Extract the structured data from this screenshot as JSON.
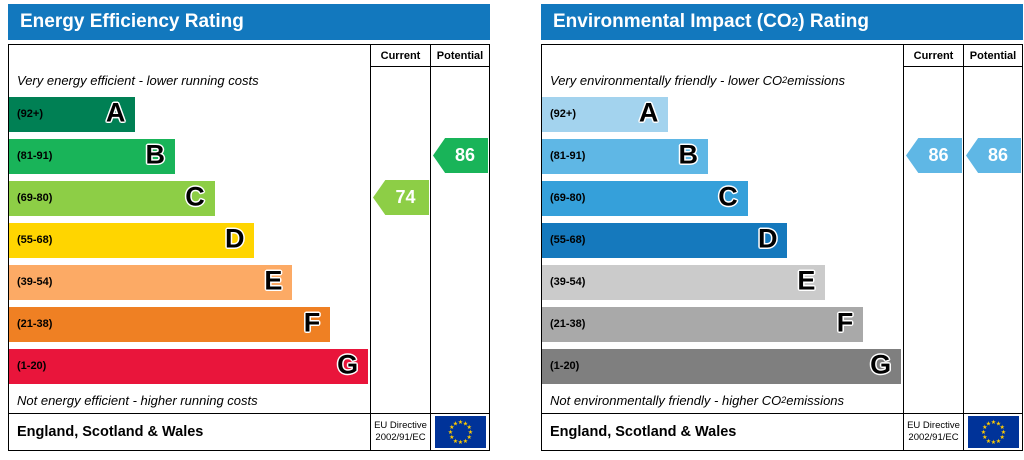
{
  "chart_data": [
    {
      "type": "bar",
      "title": {
        "pre": "Energy Efficiency Rating",
        "sub": "",
        "post": ""
      },
      "header_bg": "#1278be",
      "columns": {
        "current": "Current",
        "potential": "Potential"
      },
      "top_note": {
        "pre": "Very energy efficient - lower running costs",
        "sub": "",
        "post": ""
      },
      "bottom_note": {
        "pre": "Not energy efficient - higher running costs",
        "sub": "",
        "post": ""
      },
      "bands": [
        {
          "label": "A",
          "range": "(92+)",
          "color": "#008054",
          "width": "35%"
        },
        {
          "label": "B",
          "range": "(81-91)",
          "color": "#19b459",
          "width": "46%"
        },
        {
          "label": "C",
          "range": "(69-80)",
          "color": "#8dce46",
          "width": "57%"
        },
        {
          "label": "D",
          "range": "(55-68)",
          "color": "#ffd500",
          "width": "68%"
        },
        {
          "label": "E",
          "range": "(39-54)",
          "color": "#fcaa65",
          "width": "78.5%"
        },
        {
          "label": "F",
          "range": "(21-38)",
          "color": "#ef8023",
          "width": "89%"
        },
        {
          "label": "G",
          "range": "(1-20)",
          "color": "#e9153b",
          "width": "99.5%"
        }
      ],
      "current": {
        "value": "74",
        "band_index": 2,
        "color": "#8dce46"
      },
      "potential": {
        "value": "86",
        "band_index": 1,
        "color": "#19b459"
      },
      "footer": {
        "region": "England, Scotland & Wales",
        "directive_line1": "EU Directive",
        "directive_line2": "2002/91/EC"
      }
    },
    {
      "type": "bar",
      "title": {
        "pre": "Environmental Impact (CO",
        "sub": "2",
        "post": ") Rating"
      },
      "header_bg": "#1278be",
      "columns": {
        "current": "Current",
        "potential": "Potential"
      },
      "top_note": {
        "pre": "Very environmentally friendly - lower CO",
        "sub": "2",
        "post": " emissions"
      },
      "bottom_note": {
        "pre": "Not environmentally friendly - higher CO",
        "sub": "2",
        "post": " emissions"
      },
      "bands": [
        {
          "label": "A",
          "range": "(92+)",
          "color": "#a3d3ee",
          "width": "35%"
        },
        {
          "label": "B",
          "range": "(81-91)",
          "color": "#5fb7e5",
          "width": "46%"
        },
        {
          "label": "C",
          "range": "(69-80)",
          "color": "#35a0da",
          "width": "57%"
        },
        {
          "label": "D",
          "range": "(55-68)",
          "color": "#1579bd",
          "width": "68%"
        },
        {
          "label": "E",
          "range": "(39-54)",
          "color": "#cbcbcb",
          "width": "78.5%"
        },
        {
          "label": "F",
          "range": "(21-38)",
          "color": "#a9a9a9",
          "width": "89%"
        },
        {
          "label": "G",
          "range": "(1-20)",
          "color": "#7f7f7f",
          "width": "99.5%"
        }
      ],
      "current": {
        "value": "86",
        "band_index": 1,
        "color": "#5fb7e5"
      },
      "potential": {
        "value": "86",
        "band_index": 1,
        "color": "#5fb7e5"
      },
      "footer": {
        "region": "England, Scotland & Wales",
        "directive_line1": "EU Directive",
        "directive_line2": "2002/91/EC"
      }
    }
  ]
}
